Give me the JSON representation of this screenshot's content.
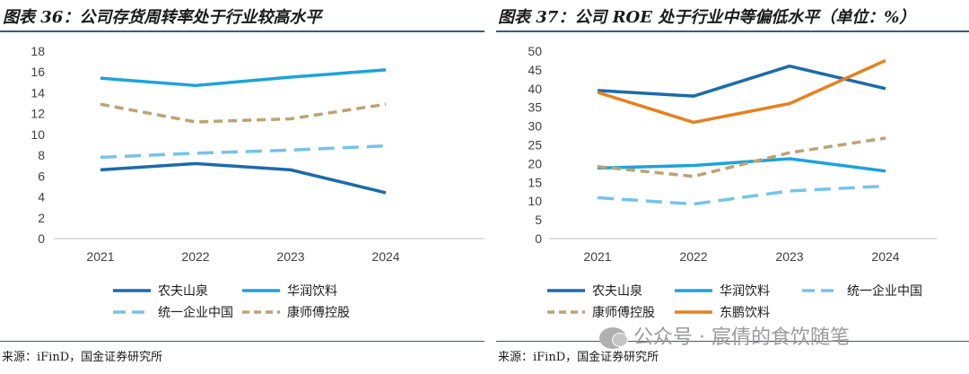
{
  "left": {
    "title": "图表 36：公司存货周转率处于行业较高水平",
    "source": "来源：iFinD，国金证券研究所"
  },
  "right": {
    "title": "图表 37：公司 ROE 处于行业中等偏低水平（单位：%）",
    "source": "来源：iFinD，国金证券研究所"
  },
  "watermark": "公众号 · 宸倩的食饮随笔",
  "chart_data": [
    {
      "type": "line",
      "title": "图表 36：公司存货周转率处于行业较高水平",
      "categories": [
        "2021",
        "2022",
        "2023",
        "2024"
      ],
      "ylim": [
        0,
        18
      ],
      "yticks": [
        0,
        2,
        4,
        6,
        8,
        10,
        12,
        14,
        16,
        18
      ],
      "grid": false,
      "legend_placement": "bottom",
      "series": [
        {
          "name": "农夫山泉",
          "values": [
            6.6,
            7.2,
            6.6,
            4.4
          ],
          "color": "#1b6bab",
          "dash": "solid"
        },
        {
          "name": "华润饮料",
          "values": [
            15.4,
            14.7,
            15.5,
            16.2
          ],
          "color": "#1aa3dd",
          "dash": "solid"
        },
        {
          "name": "统一企业中国",
          "values": [
            7.8,
            8.2,
            8.5,
            8.9
          ],
          "color": "#74c3ec",
          "dash": "longdash"
        },
        {
          "name": "康师傅控股",
          "values": [
            12.9,
            11.2,
            11.5,
            12.9
          ],
          "color": "#bfa272",
          "dash": "dash"
        }
      ]
    },
    {
      "type": "line",
      "title": "图表 37：公司 ROE 处于行业中等偏低水平（单位：%）",
      "categories": [
        "2021",
        "2022",
        "2023",
        "2024"
      ],
      "ylim": [
        0,
        50
      ],
      "yticks": [
        0,
        5,
        10,
        15,
        20,
        25,
        30,
        35,
        40,
        45,
        50
      ],
      "grid": false,
      "legend_placement": "bottom",
      "series": [
        {
          "name": "农夫山泉",
          "values": [
            39.5,
            38,
            46,
            40
          ],
          "color": "#1b6bab",
          "dash": "solid"
        },
        {
          "name": "华润饮料",
          "values": [
            18.8,
            19.5,
            21.3,
            18
          ],
          "color": "#1aa3dd",
          "dash": "solid"
        },
        {
          "name": "统一企业中国",
          "values": [
            10.9,
            9.2,
            12.7,
            14
          ],
          "color": "#74c3ec",
          "dash": "longdash"
        },
        {
          "name": "康师傅控股",
          "values": [
            19.2,
            16.6,
            22.9,
            26.8
          ],
          "color": "#bfa272",
          "dash": "dash"
        },
        {
          "name": "东鹏饮料",
          "values": [
            39,
            31,
            36,
            47.5
          ],
          "color": "#e8801e",
          "dash": "solid"
        }
      ]
    }
  ]
}
